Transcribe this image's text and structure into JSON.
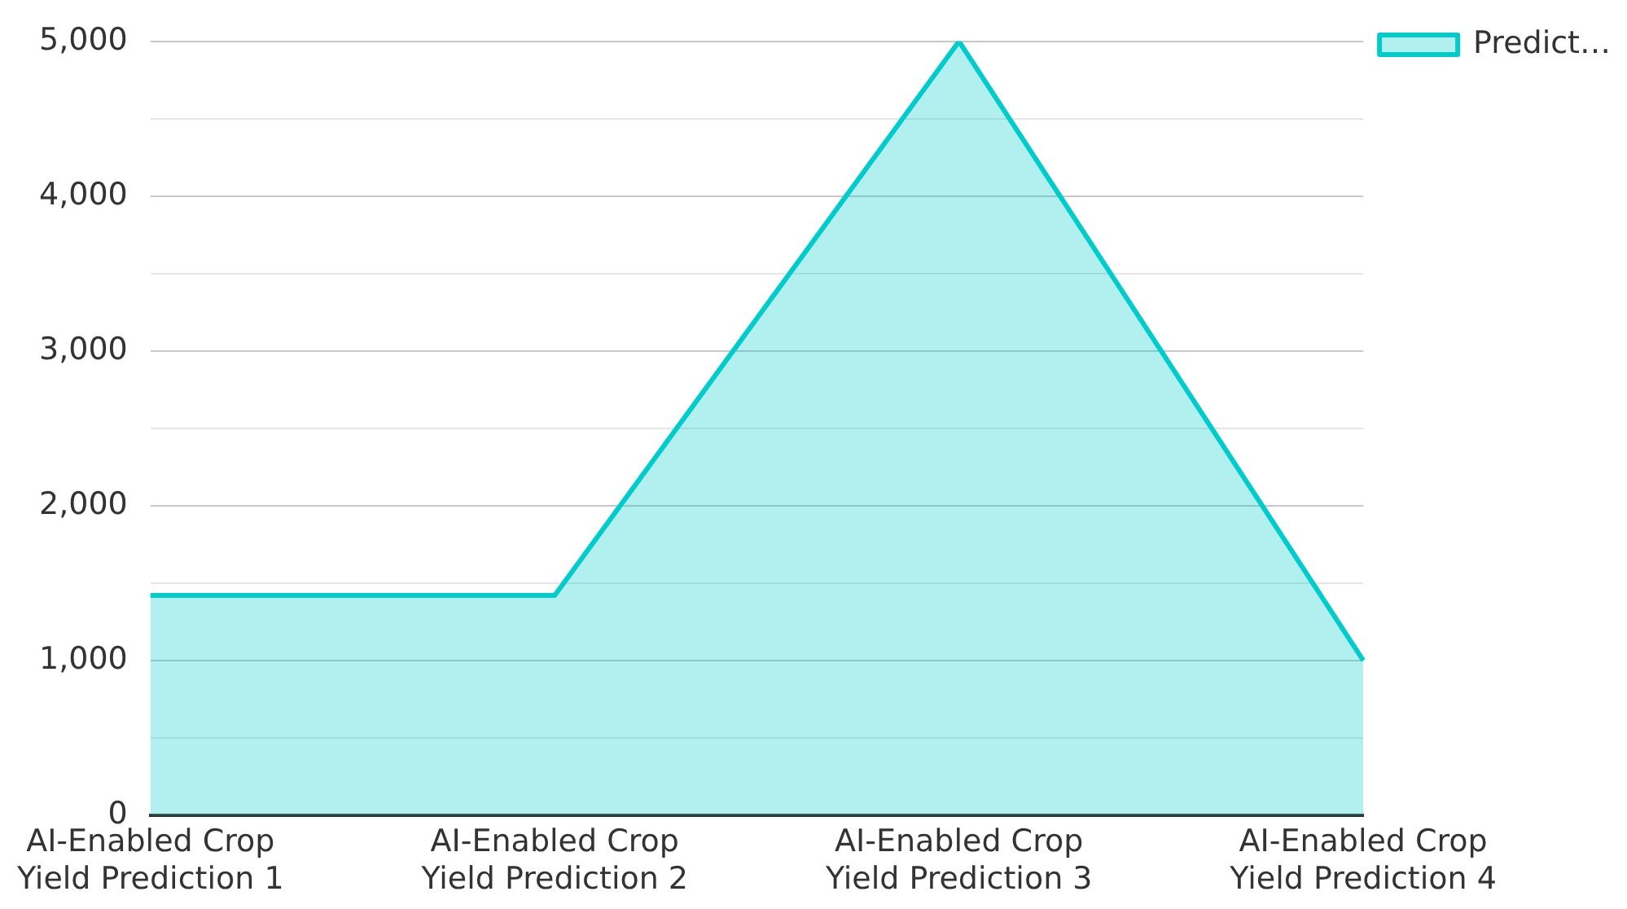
{
  "chart_data": {
    "type": "area",
    "categories": [
      "AI-Enabled Crop Yield Prediction 1",
      "AI-Enabled Crop Yield Prediction 2",
      "AI-Enabled Crop Yield Prediction 3",
      "AI-Enabled Crop Yield Prediction 4"
    ],
    "series": [
      {
        "name": "Predict…",
        "color": "#00cccc",
        "values": [
          1420,
          1420,
          5000,
          1000
        ]
      }
    ],
    "ylim": [
      0,
      5000
    ],
    "yticks": [
      0,
      {
        "value": 500,
        "label": null
      },
      {
        "value": 1000,
        "label": "1,000"
      },
      {
        "value": 1500,
        "label": null
      },
      {
        "value": 2000,
        "label": "2,000"
      },
      {
        "value": 2500,
        "label": null
      },
      {
        "value": 3000,
        "label": "3,000"
      },
      {
        "value": 3500,
        "label": null
      },
      {
        "value": 4000,
        "label": "4,000"
      },
      {
        "value": 4500,
        "label": null
      },
      {
        "value": 5000,
        "label": "5,000"
      }
    ],
    "grid": "y",
    "legend": "top right",
    "marker": "none",
    "line_style": "solid"
  }
}
